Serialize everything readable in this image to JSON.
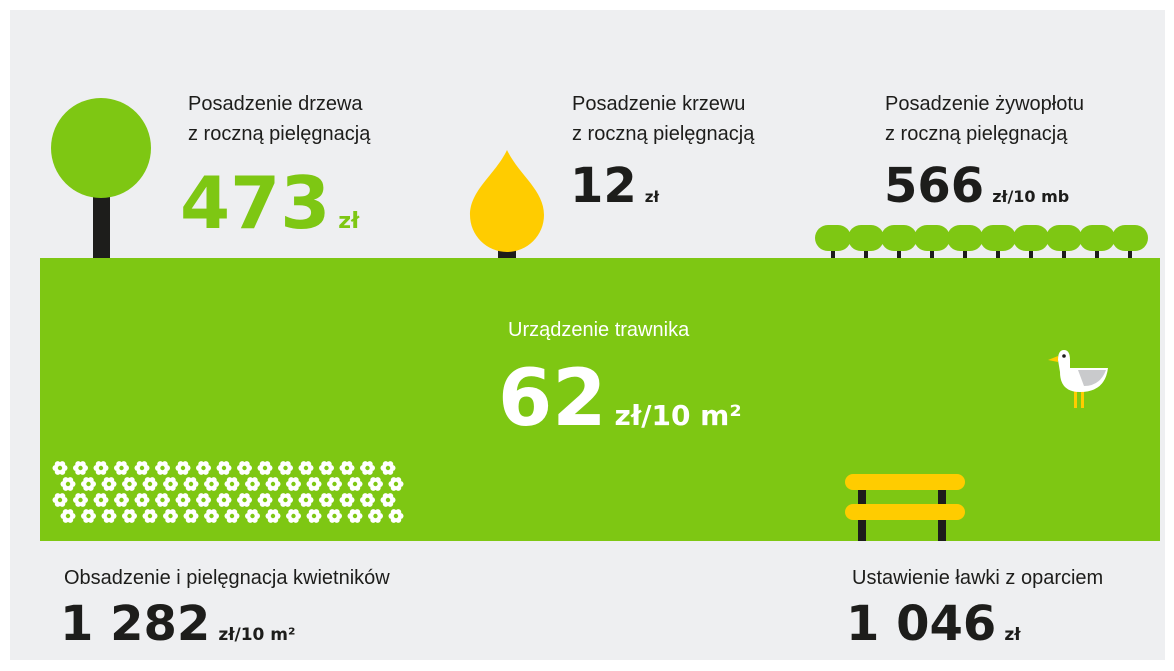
{
  "items": [
    {
      "label": [
        "Posadzenie drzewa",
        "z roczną pielęgnacją"
      ],
      "value": "473",
      "unit": "zł"
    },
    {
      "label": [
        "Posadzenie krzewu",
        "z roczną pielęgnacją"
      ],
      "value": "12",
      "unit": "zł"
    },
    {
      "label": [
        "Posadzenie żywopłotu",
        "z roczną pielęgnacją"
      ],
      "value": "566",
      "unit": "zł/10 mb"
    },
    {
      "label": [
        "Urządzenie trawnika"
      ],
      "value": "62",
      "unit": "zł/10 m²"
    },
    {
      "label": [
        "Obsadzenie i pielęgnacja kwietników"
      ],
      "value": "1 282",
      "unit": "zł/10 m²"
    },
    {
      "label": [
        "Ustawienie ławki z oparciem"
      ],
      "value": "1 046",
      "unit": "zł"
    }
  ]
}
